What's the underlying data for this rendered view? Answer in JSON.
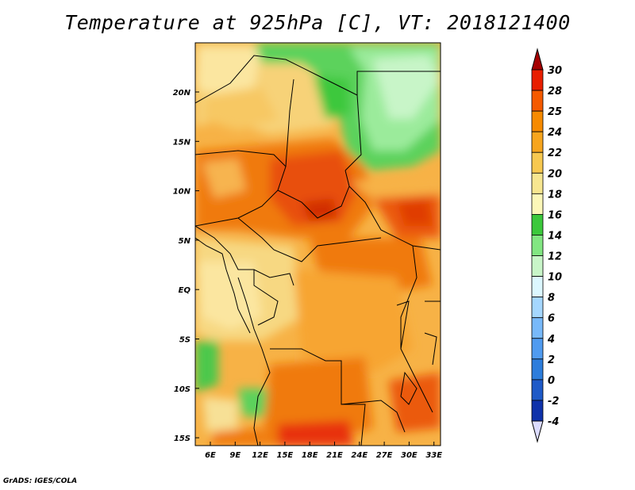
{
  "title": "Temperature at 925hPa [C], VT: 2018121400",
  "credit": "GrADS: IGES/COLA",
  "map": {
    "lat_ticks": [
      "20N",
      "15N",
      "10N",
      "5N",
      "EQ",
      "5S",
      "10S",
      "15S"
    ],
    "lon_ticks": [
      "6E",
      "9E",
      "12E",
      "15E",
      "18E",
      "21E",
      "24E",
      "27E",
      "30E",
      "33E"
    ]
  },
  "colorbar": {
    "labels": [
      "30",
      "28",
      "25",
      "24",
      "22",
      "20",
      "18",
      "16",
      "14",
      "12",
      "10",
      "8",
      "6",
      "4",
      "2",
      "0",
      "-2",
      "-4"
    ],
    "colors": [
      "#a50000",
      "#e81e00",
      "#f55a00",
      "#f78a00",
      "#f7a51e",
      "#f7c850",
      "#f7e690",
      "#fcf7b8",
      "#3cc83c",
      "#82e682",
      "#c8f5c8",
      "#dcf7ff",
      "#a5d7ff",
      "#78b9fa",
      "#509bf0",
      "#2d7ddc",
      "#1e5ac8",
      "#0f32aa",
      "#0a1464"
    ]
  }
}
